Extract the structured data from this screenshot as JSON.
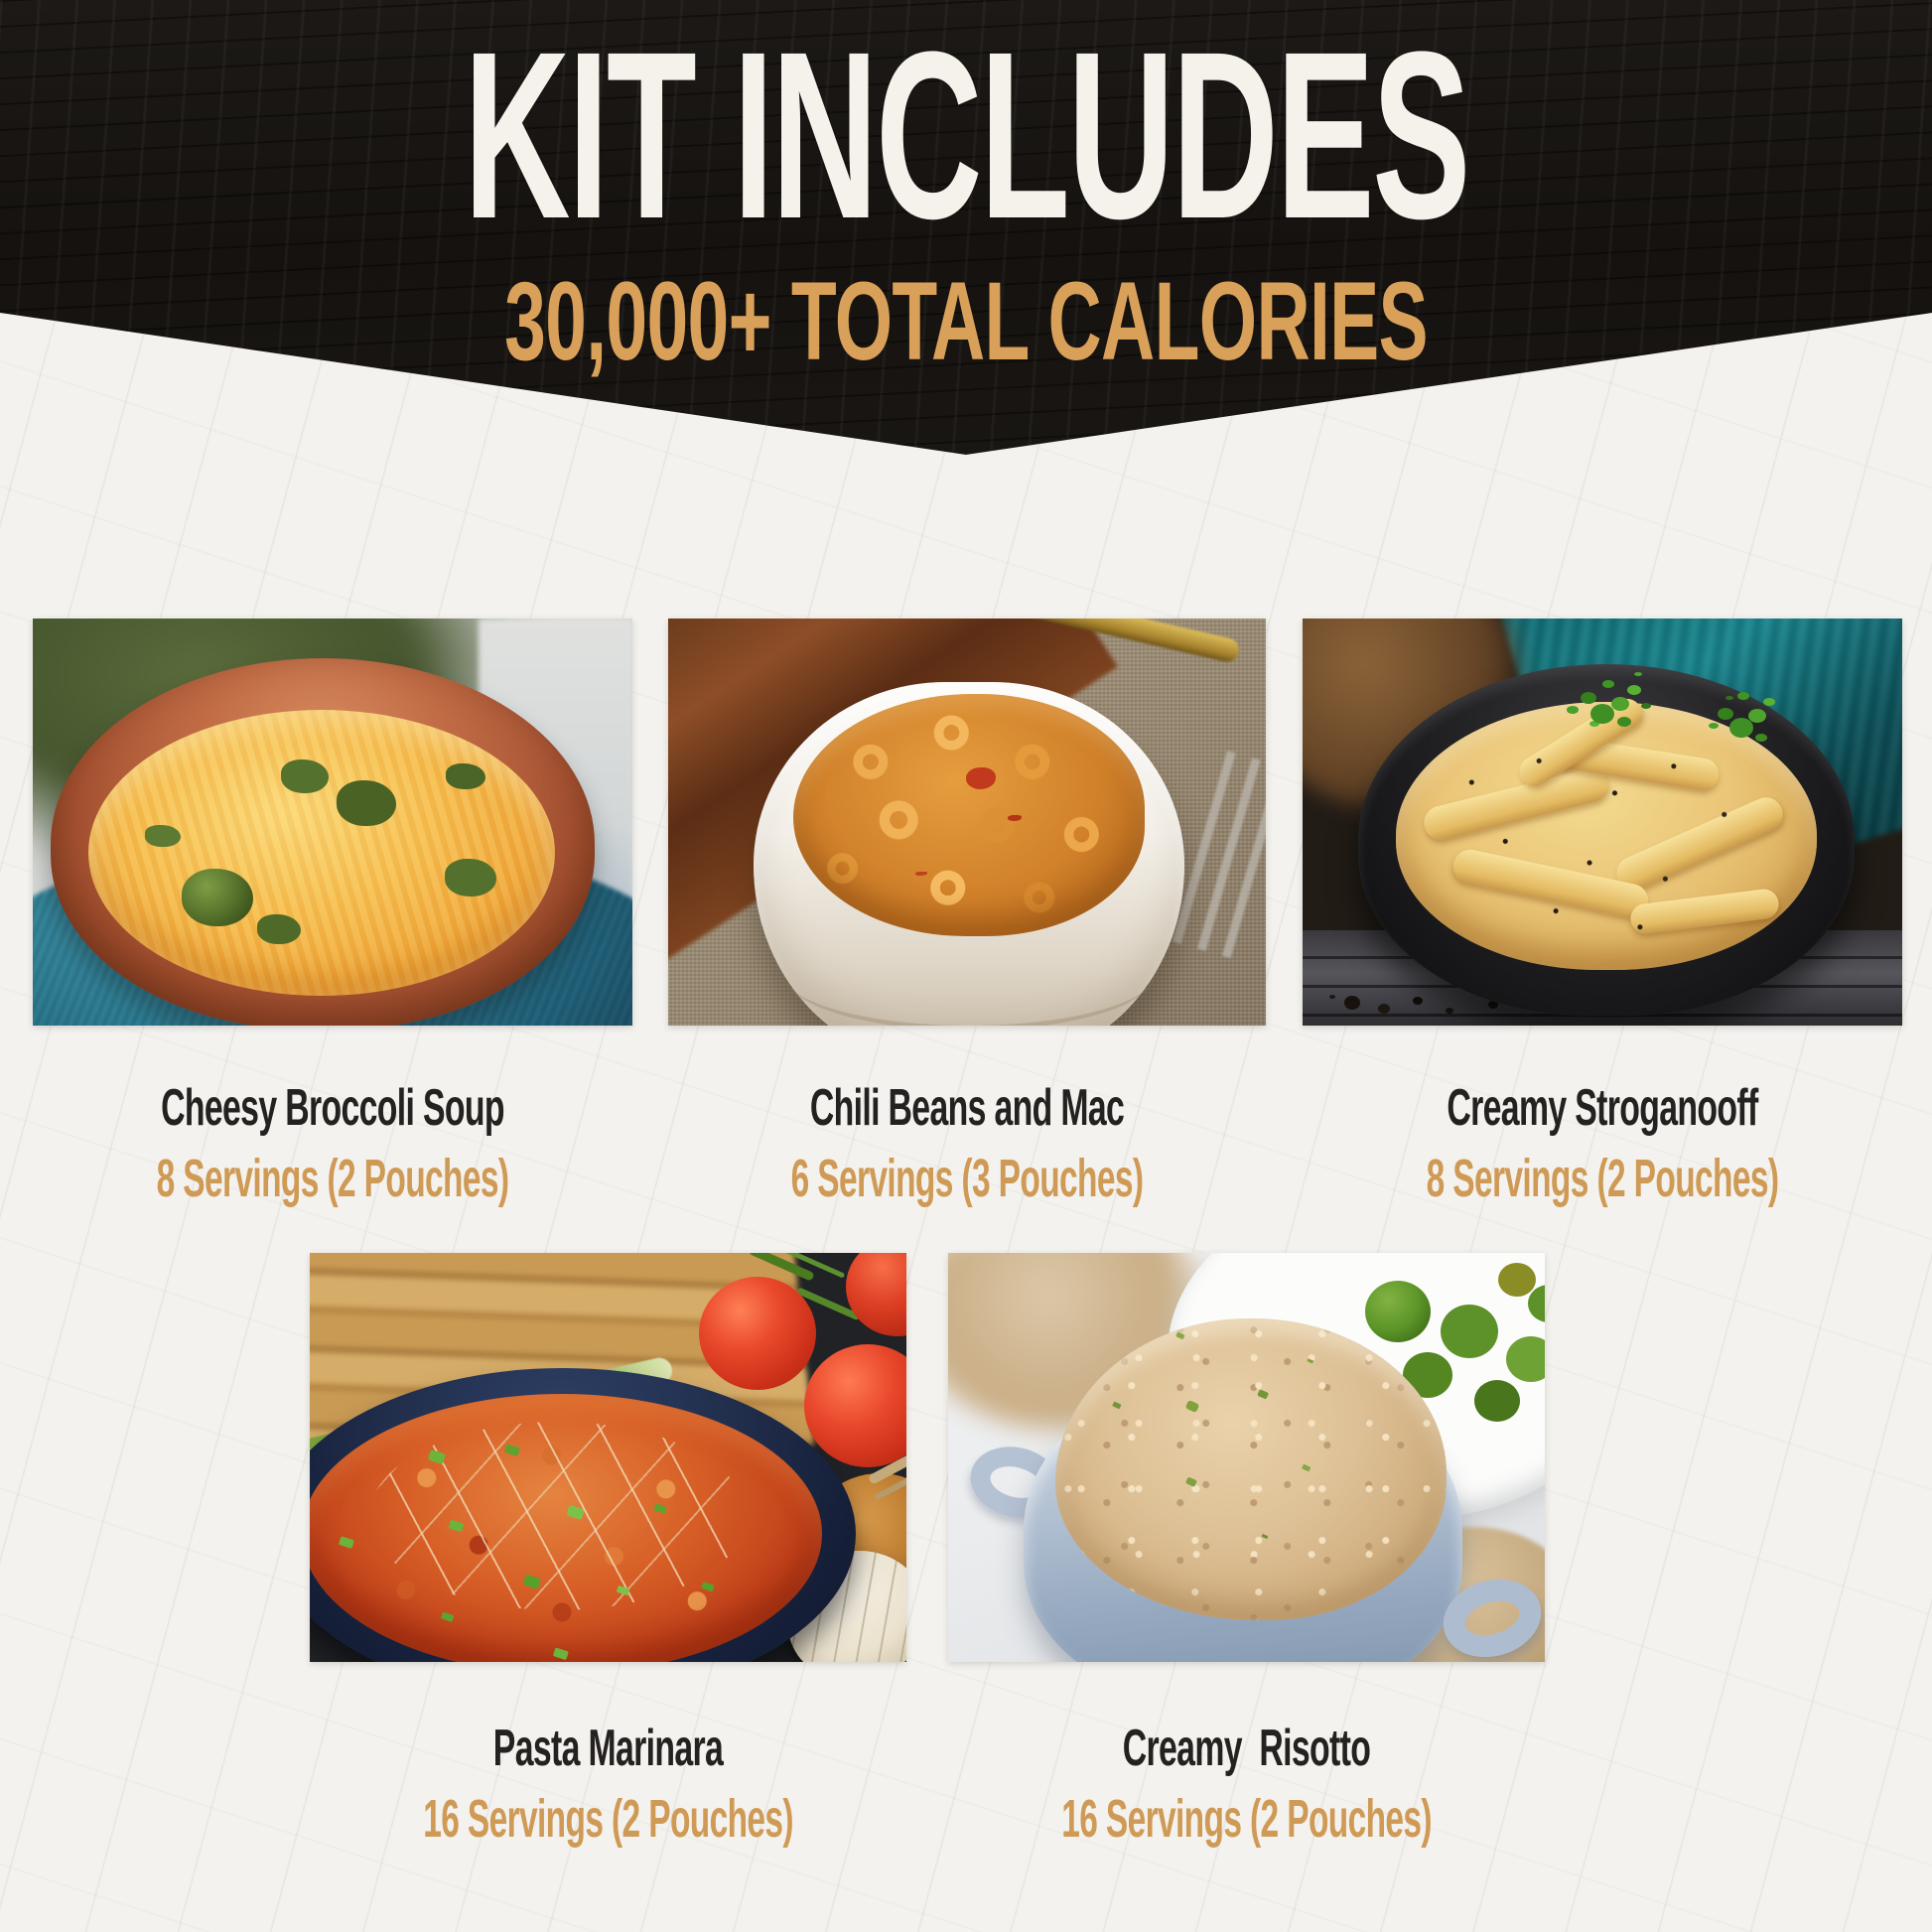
{
  "header": {
    "title": "KIT INCLUDES",
    "subtitle": "30,000+ TOTAL CALORIES",
    "background_color": "#16130f",
    "title_color": "#f5f2ec",
    "accent_color": "#d9a05a"
  },
  "colors": {
    "page_background": "#f4f2ee",
    "caption_title": "#242120",
    "caption_servings": "#cf9a55"
  },
  "items": [
    {
      "name": "Cheesy Broccoli Soup",
      "servings": "8 Servings (2 Pouches)",
      "photo": "cheesy-broccoli-soup-photo"
    },
    {
      "name": "Chili Beans and Mac",
      "servings": "6 Servings (3 Pouches)",
      "photo": "chili-beans-and-mac-photo"
    },
    {
      "name": "Creamy Stroganooff",
      "servings": "8 Servings (2 Pouches)",
      "photo": "creamy-stroganoff-photo"
    },
    {
      "name": "Pasta Marinara",
      "servings": "16 Servings (2 Pouches)",
      "photo": "pasta-marinara-photo"
    },
    {
      "name": "Creamy  Risotto",
      "servings": "16 Servings (2 Pouches)",
      "photo": "creamy-risotto-photo"
    }
  ]
}
